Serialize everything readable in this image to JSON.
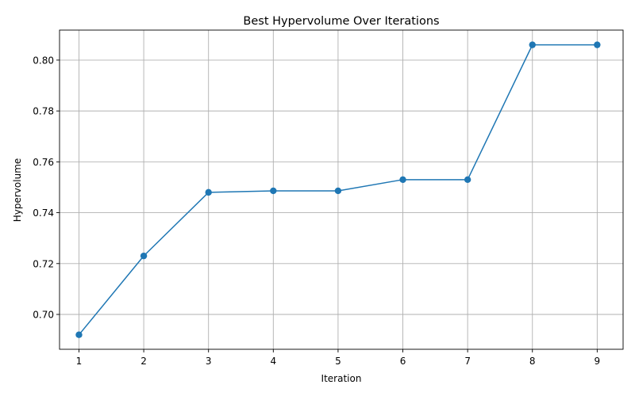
{
  "chart_data": {
    "type": "line",
    "title": "Best Hypervolume Over Iterations",
    "xlabel": "Iteration",
    "ylabel": "Hypervolume",
    "x": [
      1,
      2,
      3,
      4,
      5,
      6,
      7,
      8,
      9
    ],
    "series": [
      {
        "values": [
          0.692,
          0.723,
          0.748,
          0.7486,
          0.7486,
          0.753,
          0.753,
          0.806,
          0.806
        ],
        "color": "#1f77b4",
        "marker": "circle"
      }
    ],
    "xlim": [
      0.7,
      9.4
    ],
    "ylim": [
      0.6863,
      0.8118
    ],
    "xticks": [
      1,
      2,
      3,
      4,
      5,
      6,
      7,
      8,
      9
    ],
    "yticks": [
      0.7,
      0.72,
      0.74,
      0.76,
      0.78,
      0.8
    ],
    "ytick_labels": [
      "0.70",
      "0.72",
      "0.74",
      "0.76",
      "0.78",
      "0.80"
    ],
    "grid": true
  }
}
